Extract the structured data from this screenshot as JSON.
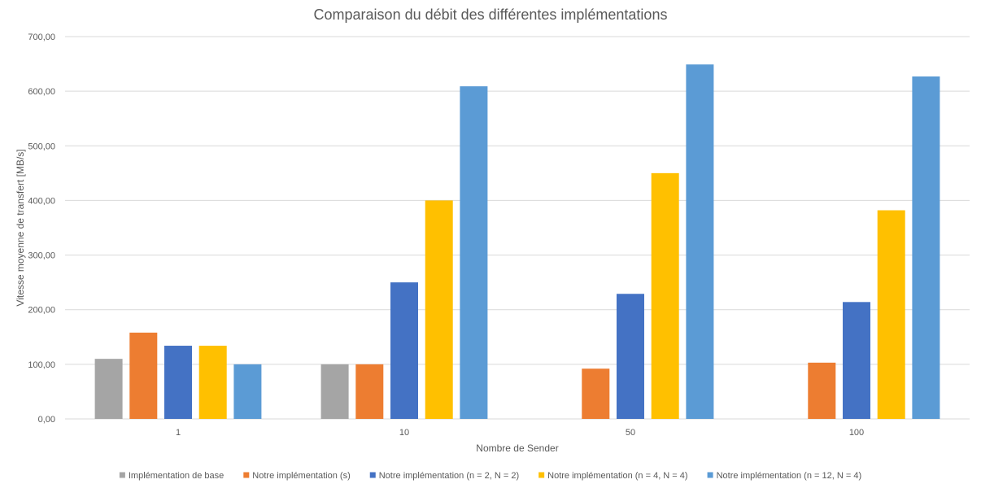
{
  "chart_data": {
    "type": "bar",
    "title": "Comparaison du débit des différentes implémentations",
    "xlabel": "Nombre de Sender",
    "ylabel": "Vitesse moyenne de transfert [MB/s]",
    "categories": [
      "1",
      "10",
      "50",
      "100"
    ],
    "ylim": [
      0,
      700
    ],
    "yticks": [
      0,
      100,
      200,
      300,
      400,
      500,
      600,
      700
    ],
    "ytick_labels": [
      "0,00",
      "100,00",
      "200,00",
      "300,00",
      "400,00",
      "500,00",
      "600,00",
      "700,00"
    ],
    "grid": true,
    "legend_position": "bottom",
    "series": [
      {
        "name": "Implémentation de base",
        "color": "#a5a5a5",
        "values": [
          110,
          100,
          null,
          null
        ]
      },
      {
        "name": "Notre implémentation (s)",
        "color": "#ed7d31",
        "values": [
          158,
          100,
          92,
          103
        ]
      },
      {
        "name": "Notre implémentation (n = 2, N = 2)",
        "color": "#4472c4",
        "values": [
          134,
          250,
          229,
          214
        ]
      },
      {
        "name": "Notre implémentation (n = 4, N = 4)",
        "color": "#ffc000",
        "values": [
          134,
          400,
          450,
          382
        ]
      },
      {
        "name": "Notre implémentation (n = 12, N = 4)",
        "color": "#5b9bd5",
        "values": [
          100,
          609,
          649,
          627
        ]
      }
    ]
  }
}
